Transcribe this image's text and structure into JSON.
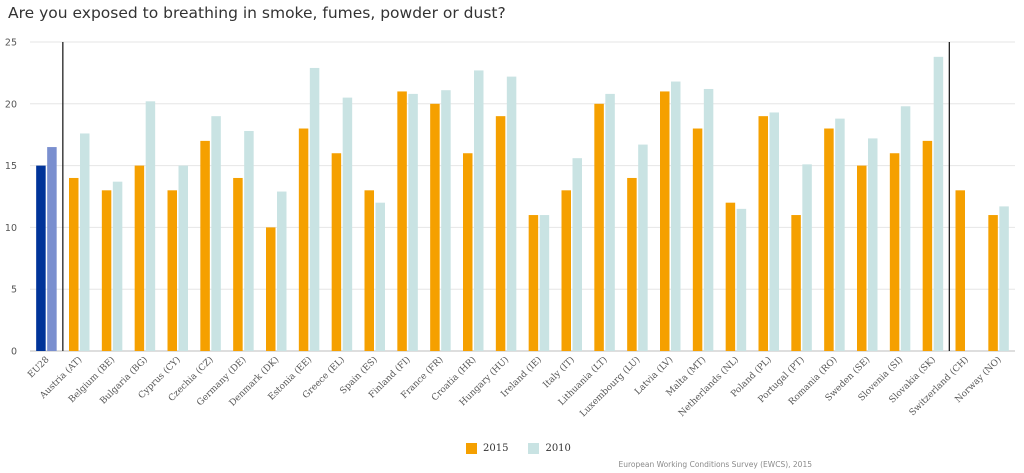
{
  "page": {
    "title": "Are you exposed to breathing in smoke, fumes, powder or dust?",
    "source": "European Working Conditions Survey (EWCS), 2015"
  },
  "chart_data": {
    "type": "bar",
    "title": "Are you exposed to breathing in smoke, fumes, powder or dust?",
    "xlabel": "",
    "ylabel": "",
    "ylim": [
      0,
      25
    ],
    "yticks": [
      0,
      5,
      10,
      15,
      20,
      25
    ],
    "grid": true,
    "legend_position": "bottom",
    "categories": [
      "EU28",
      "Austria (AT)",
      "Belgium (BE)",
      "Bulgaria (BG)",
      "Cyprus (CY)",
      "Czechia (CZ)",
      "Germany (DE)",
      "Denmark (DK)",
      "Estonia (EE)",
      "Greece (EL)",
      "Spain (ES)",
      "Finland (FI)",
      "France (FR)",
      "Croatia (HR)",
      "Hungary (HU)",
      "Ireland (IE)",
      "Italy (IT)",
      "Lithuania (LT)",
      "Luxembourg (LU)",
      "Latvia (LV)",
      "Malta (MT)",
      "Netherlands (NL)",
      "Poland (PL)",
      "Portugal (PT)",
      "Romania (RO)",
      "Sweden (SE)",
      "Slovenia (SI)",
      "Slovakia (SK)",
      "Switzerland (CH)",
      "Norway (NO)"
    ],
    "series": [
      {
        "name": "2015",
        "color": "#f5a000",
        "highlight_color": "#003399",
        "values": [
          15,
          14,
          13,
          15,
          13,
          17,
          14,
          10,
          18,
          16,
          13,
          21,
          20,
          16,
          19,
          11,
          13,
          20,
          14,
          21,
          18,
          12,
          19,
          11,
          18,
          15,
          16,
          17,
          13,
          11
        ]
      },
      {
        "name": "2010",
        "color": "#c9e3e3",
        "highlight_color": "#7a8fcf",
        "values": [
          16.5,
          17.6,
          13.7,
          20.2,
          15,
          19,
          17.8,
          12.9,
          22.9,
          20.5,
          12,
          20.8,
          21.1,
          22.7,
          22.2,
          11,
          15.6,
          20.8,
          16.7,
          21.8,
          21.2,
          11.5,
          19.3,
          15.1,
          18.8,
          17.2,
          19.8,
          23.8,
          null,
          11.7
        ]
      }
    ],
    "separator_lines_after": [
      "EU28",
      "Slovakia (SK)"
    ]
  }
}
